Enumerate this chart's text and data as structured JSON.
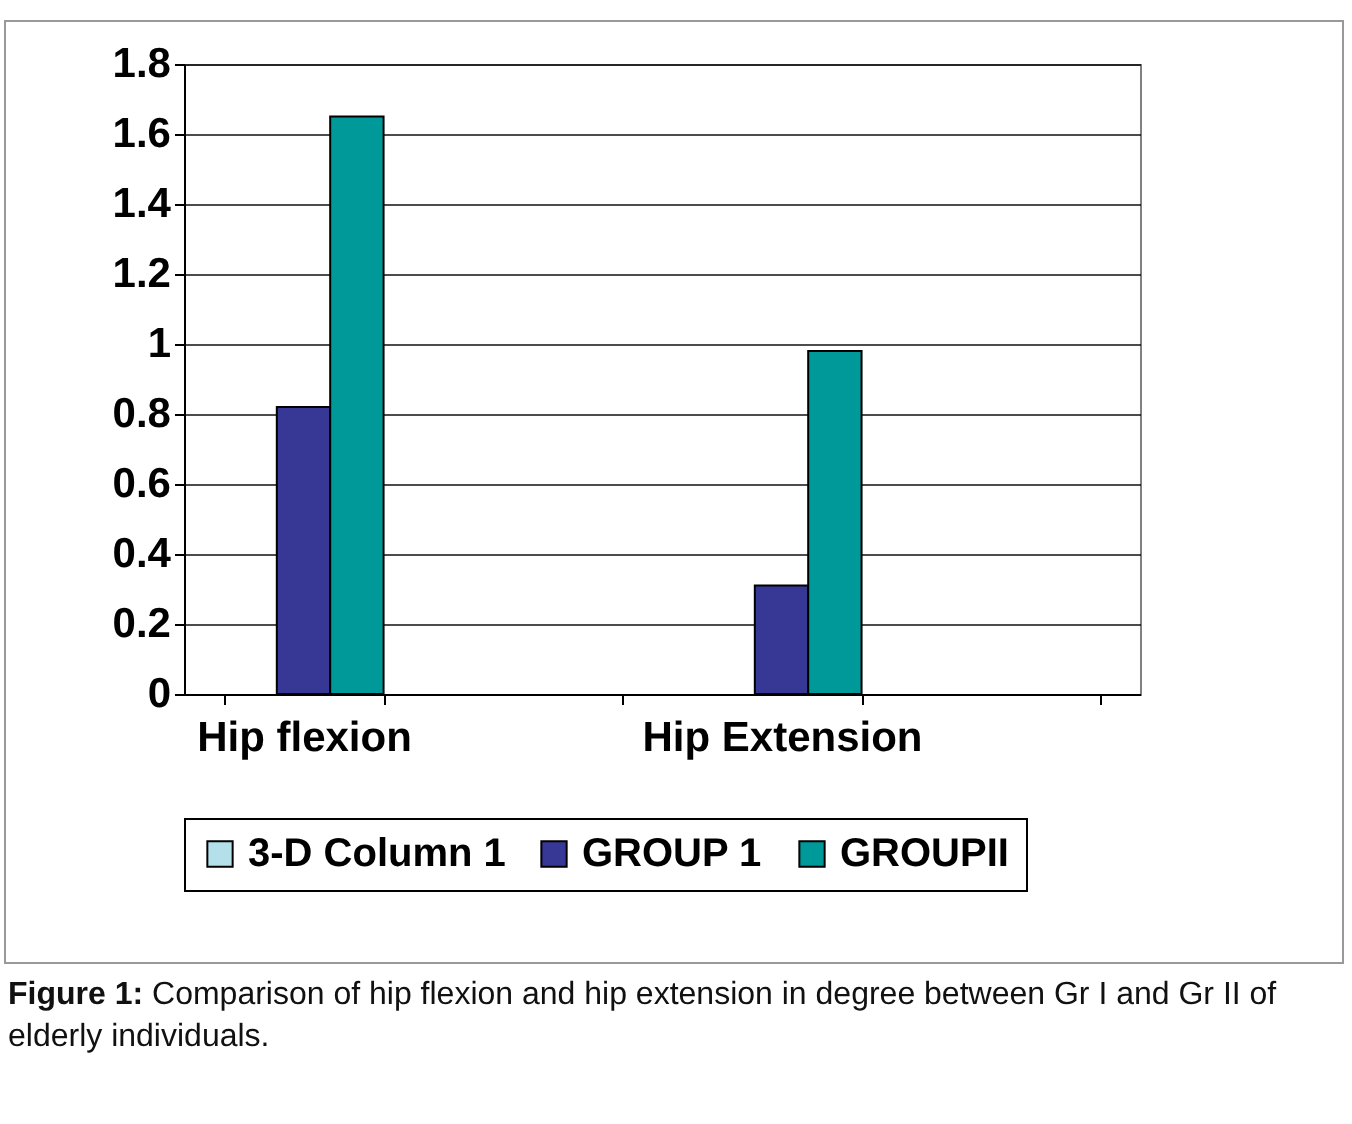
{
  "chart_data": {
    "type": "bar",
    "categories": [
      "Hip flexion",
      null,
      "Hip Extension",
      null
    ],
    "series": [
      {
        "name": "3-D Column 1",
        "color": "#b3e0ea",
        "values": [
          null,
          null,
          null,
          null
        ]
      },
      {
        "name": "GROUP 1",
        "color": "#373795",
        "values": [
          0.82,
          null,
          0.31,
          null
        ]
      },
      {
        "name": "GROUPII",
        "color": "#009999",
        "values": [
          1.65,
          null,
          0.98,
          null
        ]
      }
    ],
    "ylim": [
      0,
      1.8
    ],
    "yticks": [
      0,
      0.2,
      0.4,
      0.6,
      0.8,
      1,
      1.2,
      1.4,
      1.6,
      1.8
    ],
    "grid": "y",
    "legend": "bottom",
    "annotations": [
      "Figure 1: Comparison of hip flexion and hip extension in degree between Gr I and Gr II of elderly individuals."
    ]
  }
}
